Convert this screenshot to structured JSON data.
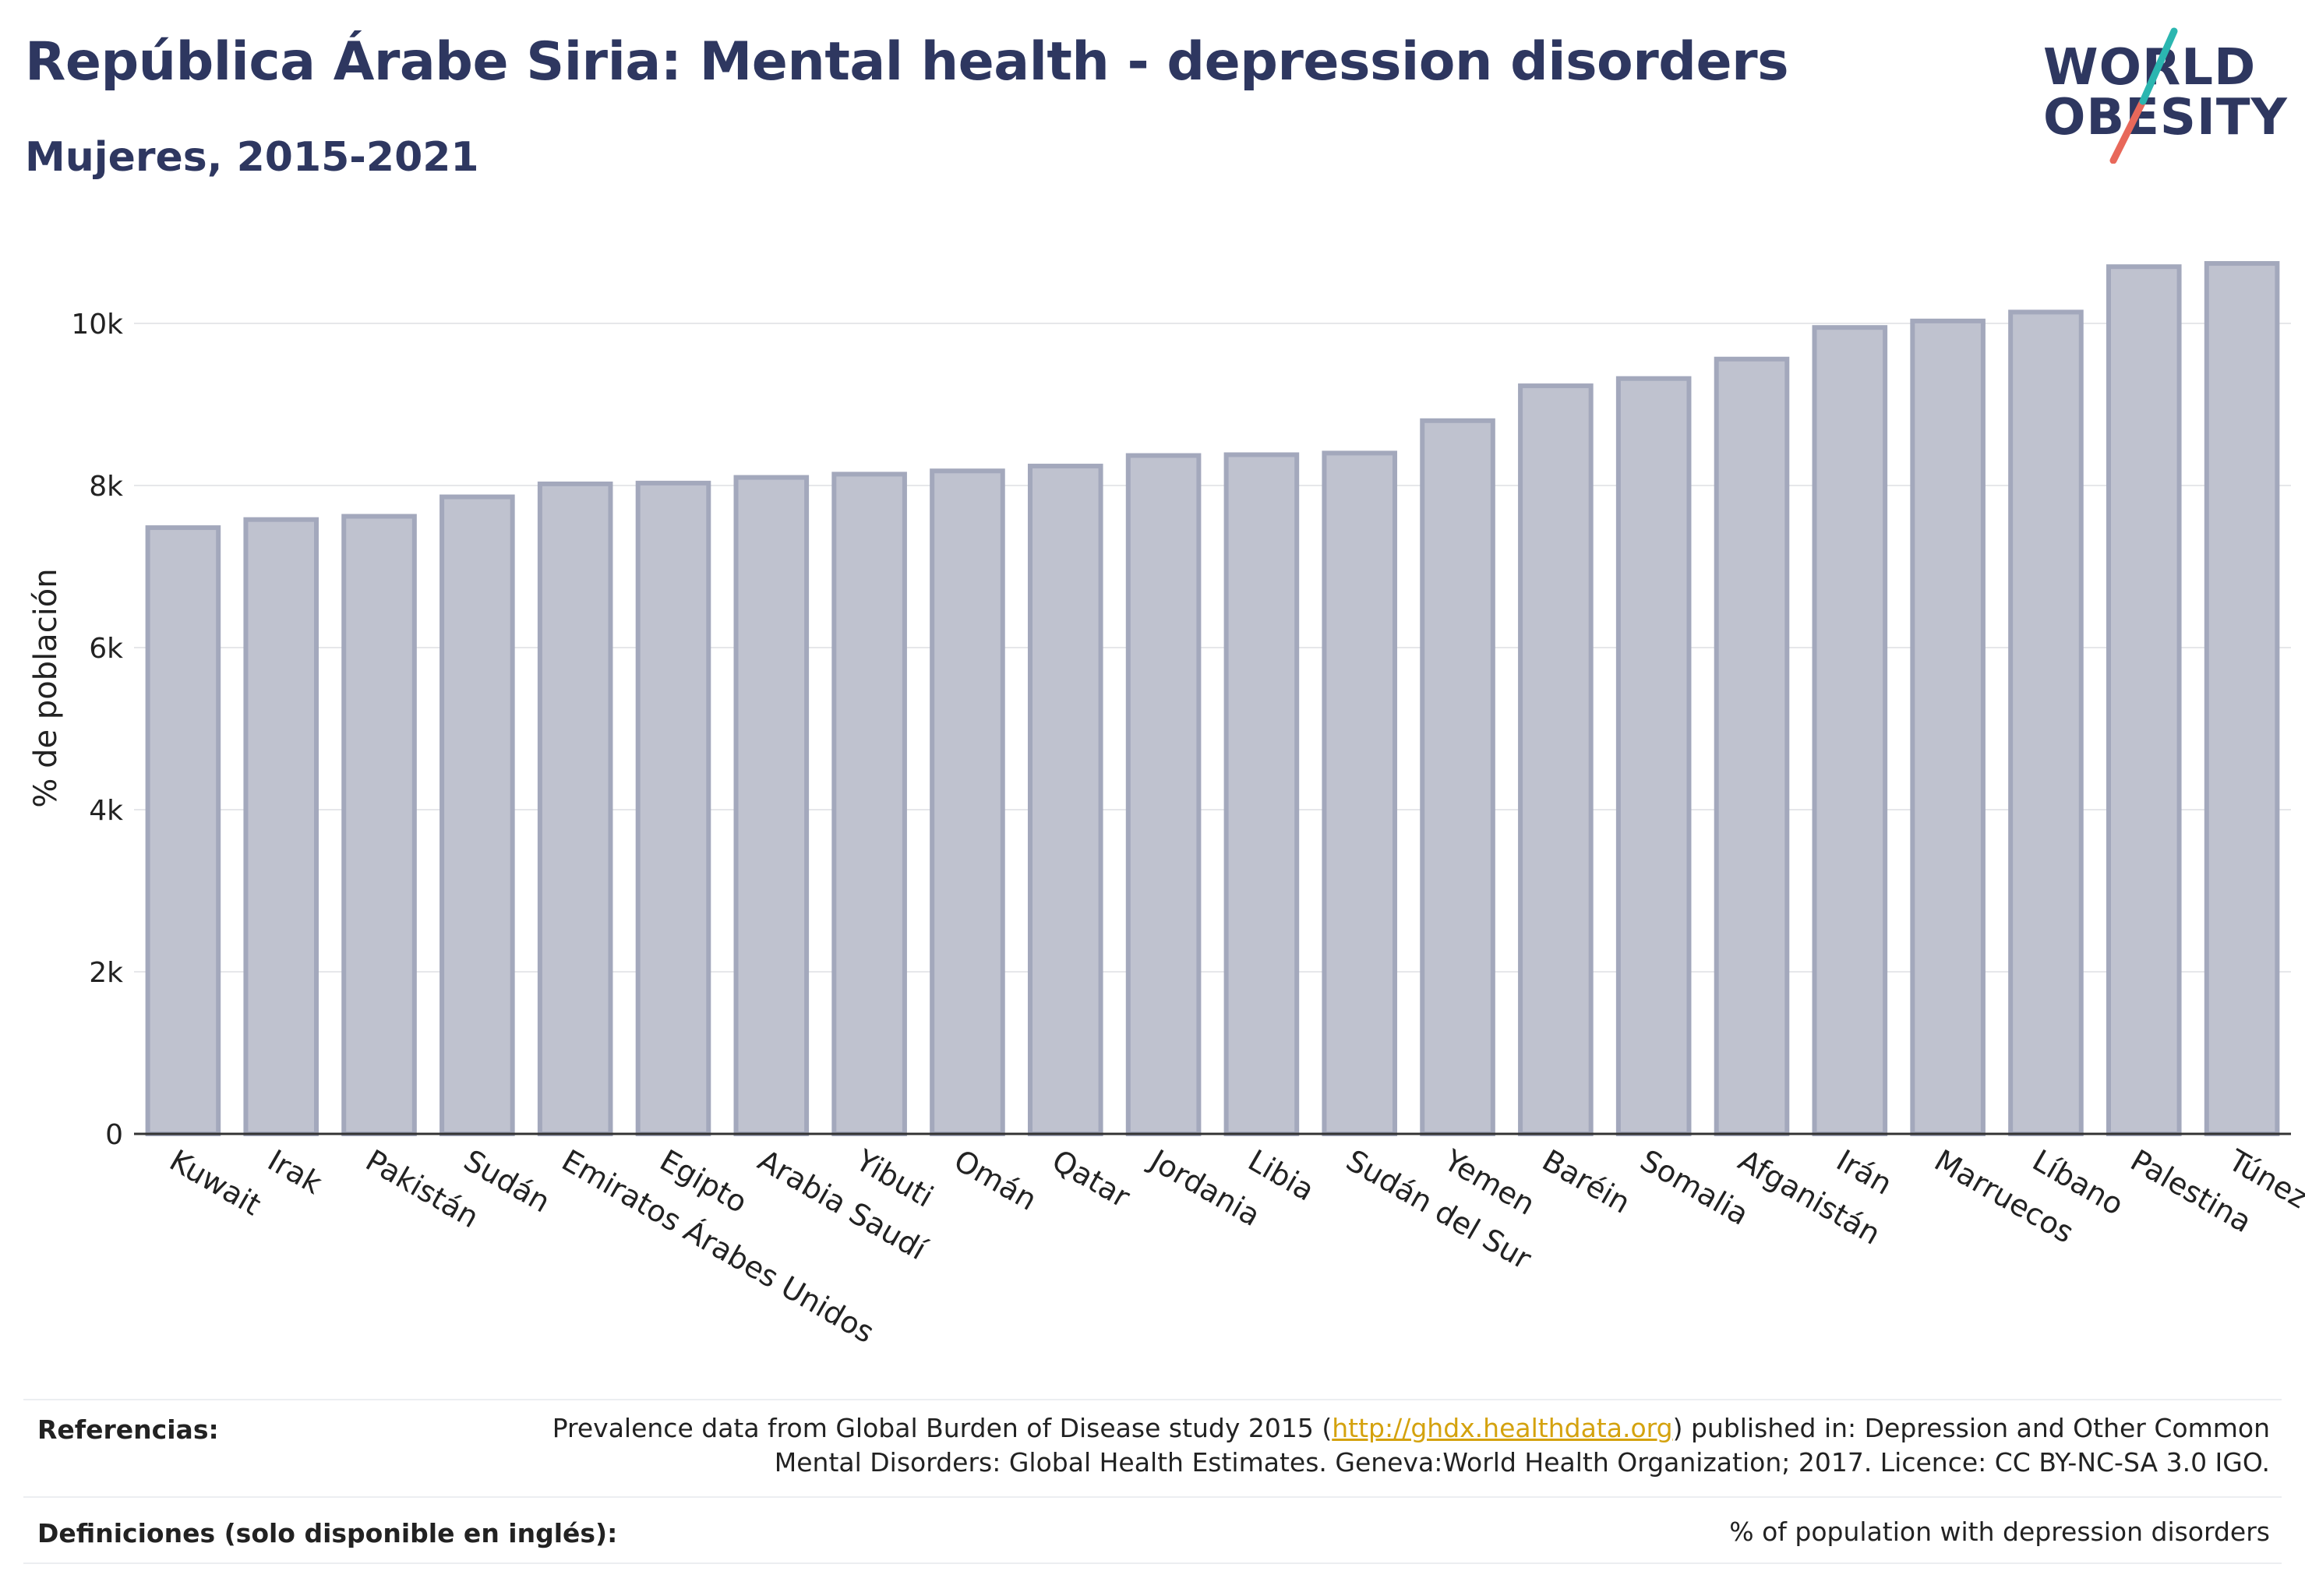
{
  "header": {
    "title": "República Árabe Siria: Mental health - depression disorders",
    "subtitle": "Mujeres, 2015-2021"
  },
  "logo": {
    "line1": "WORLD",
    "line2": "OBESITY",
    "colors": {
      "text": "#2e3760",
      "slash_top": "#2bb6b0",
      "slash_bottom": "#e8685a"
    }
  },
  "chart_data": {
    "type": "bar",
    "ylabel": "% de población",
    "xlabel": "",
    "ylim": [
      0,
      11000
    ],
    "yticks": [
      0,
      2000,
      4000,
      6000,
      8000,
      10000
    ],
    "ytick_labels": [
      "0",
      "2k",
      "4k",
      "6k",
      "8k",
      "10k"
    ],
    "grid": true,
    "bar_color": "#bfc2cf",
    "bar_edge_color": "#a3a8bc",
    "categories": [
      "Kuwait",
      "Irak",
      "Pakistán",
      "Sudán",
      "Emiratos Árabes Unidos",
      "Egipto",
      "Arabia Saudí",
      "Yibuti",
      "Omán",
      "Qatar",
      "Jordania",
      "Libia",
      "Sudán del Sur",
      "Yemen",
      "Baréin",
      "Somalia",
      "Afganistán",
      "Irán",
      "Marruecos",
      "Líbano",
      "Palestina",
      "Túnez"
    ],
    "values": [
      7480,
      7580,
      7620,
      7860,
      8020,
      8030,
      8100,
      8140,
      8180,
      8240,
      8370,
      8380,
      8400,
      8800,
      9230,
      9320,
      9560,
      9950,
      10030,
      10140,
      10700,
      10740
    ]
  },
  "footer": {
    "references_label": "Referencias:",
    "references_pre": "Prevalence data from Global Burden of Disease study 2015 (",
    "references_link": "http://ghdx.healthdata.org",
    "references_post": ") published in: Depression and Other Common",
    "references_line2": "Mental Disorders: Global Health Estimates. Geneva:World Health Organization; 2017. Licence: CC BY-NC-SA 3.0 IGO.",
    "definitions_label": "Definiciones (solo disponible en inglés):",
    "definitions_text": "% of population with depression disorders"
  }
}
